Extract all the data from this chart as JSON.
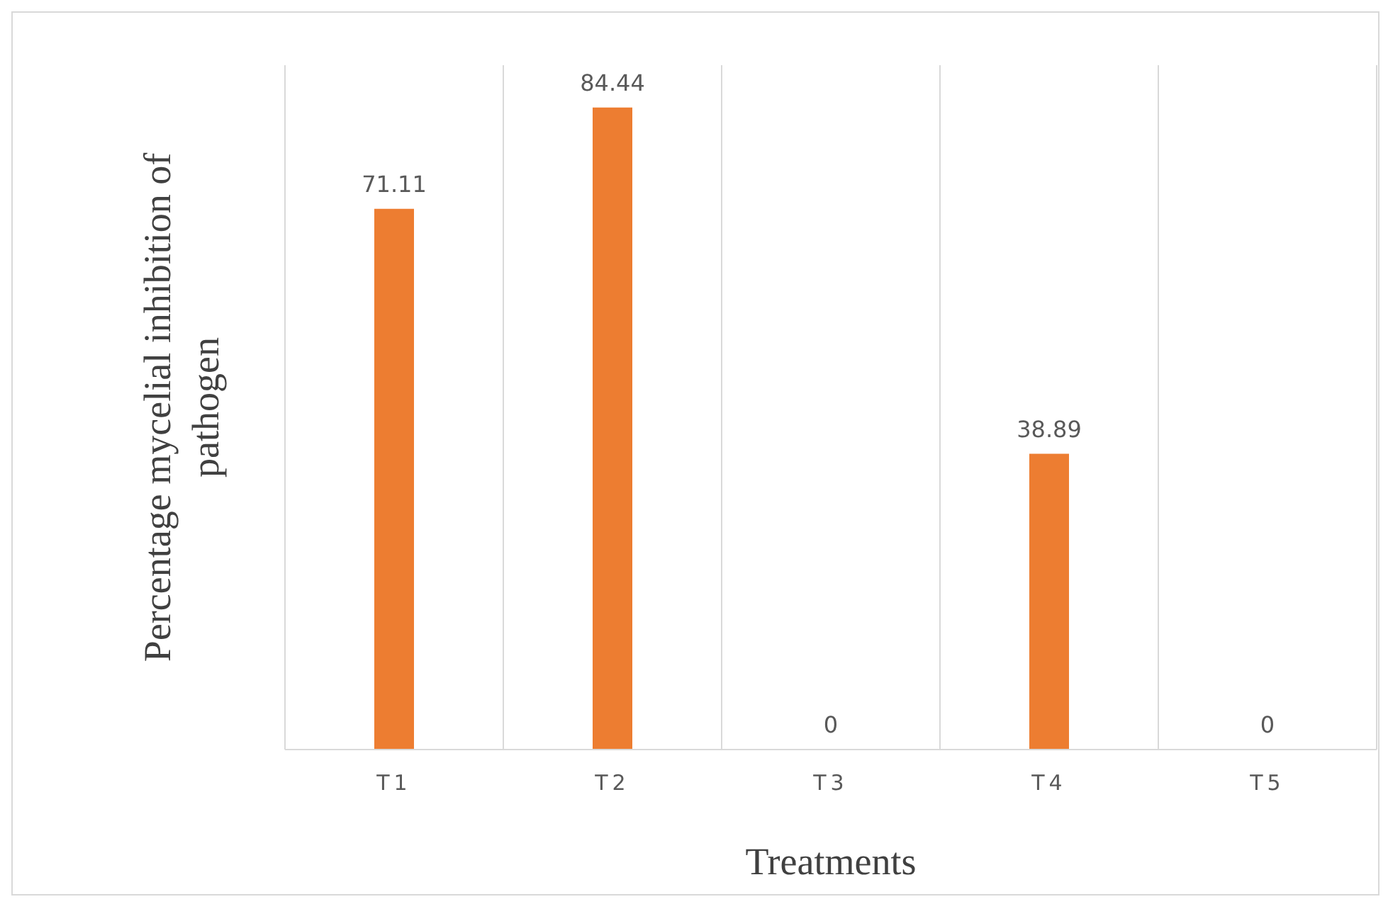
{
  "chart_data": {
    "type": "bar",
    "xlabel": "Treatments",
    "ylabel": "Percentage mycelial inhibition of pathogen",
    "categories": [
      "T1",
      "T2",
      "T3",
      "T4",
      "T5"
    ],
    "values": [
      71.11,
      84.44,
      0,
      38.89,
      0
    ],
    "color": "#ed7d31",
    "ylim": [
      0,
      90
    ],
    "data_labels": true,
    "grid": "x",
    "tick_labels": "x"
  }
}
